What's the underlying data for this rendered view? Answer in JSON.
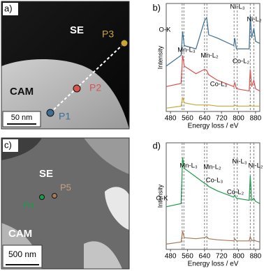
{
  "images": {
    "a": {
      "label": "a)",
      "region_top": "SE",
      "region_bottom": "CAM",
      "points": [
        "P1",
        "P2",
        "P3"
      ],
      "scale": "50 nm"
    },
    "c": {
      "label": "c)",
      "region_top": "SE",
      "region_bottom": "CAM",
      "points": [
        "P4",
        "P5"
      ],
      "scale": "500 nm"
    }
  },
  "chart_data": [
    {
      "type": "line",
      "label": "b)",
      "x_label": "Energy loss / eV",
      "y_label": "Intensity",
      "x": [
        460,
        530,
        537,
        545,
        600,
        640,
        650,
        660,
        700,
        778,
        782,
        790,
        850,
        855,
        862,
        872,
        880,
        900
      ],
      "series": [
        {
          "color": "#3d6f93",
          "values": [
            4.2,
            5.2,
            7.4,
            6.1,
            5.8,
            8.4,
            8.7,
            7.1,
            6.8,
            6.1,
            6.8,
            5.8,
            5.8,
            8.9,
            6.8,
            7.7,
            6.5,
            6.3
          ]
        },
        {
          "color": "#d9534f",
          "values": [
            2.3,
            2.6,
            5.2,
            4.2,
            3.5,
            3.9,
            3.8,
            3.4,
            2.9,
            2.3,
            2.7,
            2.1,
            1.9,
            3.9,
            2.3,
            2.9,
            2.1,
            1.9
          ]
        },
        {
          "color": "#c9a634",
          "values": [
            0.3,
            0.5,
            1.3,
            0.8,
            0.6,
            0.6,
            0.6,
            0.6,
            0.5,
            0.5,
            0.6,
            0.5,
            0.5,
            0.6,
            0.5,
            0.5,
            0.5,
            0.5
          ]
        }
      ],
      "edges": [
        535,
        543,
        640,
        651,
        779,
        794,
        855,
        872
      ],
      "edge_labels": [
        "O-K",
        "Mn-L₃",
        "Mn-L₂",
        "Co-L₃",
        "Co-L₂",
        "Ni-L₃",
        "Ni-L₂"
      ],
      "xlim": [
        460,
        900
      ],
      "ylim": [
        0,
        10
      ],
      "xticks": [
        480,
        560,
        640,
        720,
        800,
        880
      ]
    },
    {
      "type": "line",
      "label": "d)",
      "x_label": "Energy loss / eV",
      "y_label": "Intensity",
      "x": [
        460,
        530,
        537,
        545,
        600,
        640,
        650,
        660,
        700,
        778,
        782,
        790,
        850,
        855,
        862,
        872,
        880,
        900
      ],
      "series": [
        {
          "color": "#1f9a4c",
          "values": [
            4.0,
            4.3,
            8.6,
            7.6,
            6.8,
            6.2,
            6.1,
            5.9,
            5.5,
            4.9,
            5.1,
            4.8,
            4.6,
            6.9,
            4.6,
            4.8,
            4.5,
            4.3
          ]
        },
        {
          "color": "#a8785a",
          "values": [
            0.5,
            0.7,
            1.7,
            1.1,
            1.0,
            1.1,
            1.2,
            1.0,
            0.9,
            0.8,
            1.0,
            0.8,
            0.8,
            1.2,
            0.8,
            0.9,
            0.8,
            0.7
          ]
        }
      ],
      "edges": [
        535,
        543,
        640,
        651,
        779,
        794,
        855,
        872
      ],
      "edge_labels": [
        "O-K",
        "Mn-L₃",
        "Mn-L₂",
        "Co-L₃",
        "Co-L₂",
        "Ni-L₃",
        "Ni-L₂"
      ],
      "xlim": [
        460,
        900
      ],
      "ylim": [
        0,
        10
      ],
      "xticks": [
        480,
        560,
        640,
        720,
        800,
        880
      ]
    }
  ]
}
